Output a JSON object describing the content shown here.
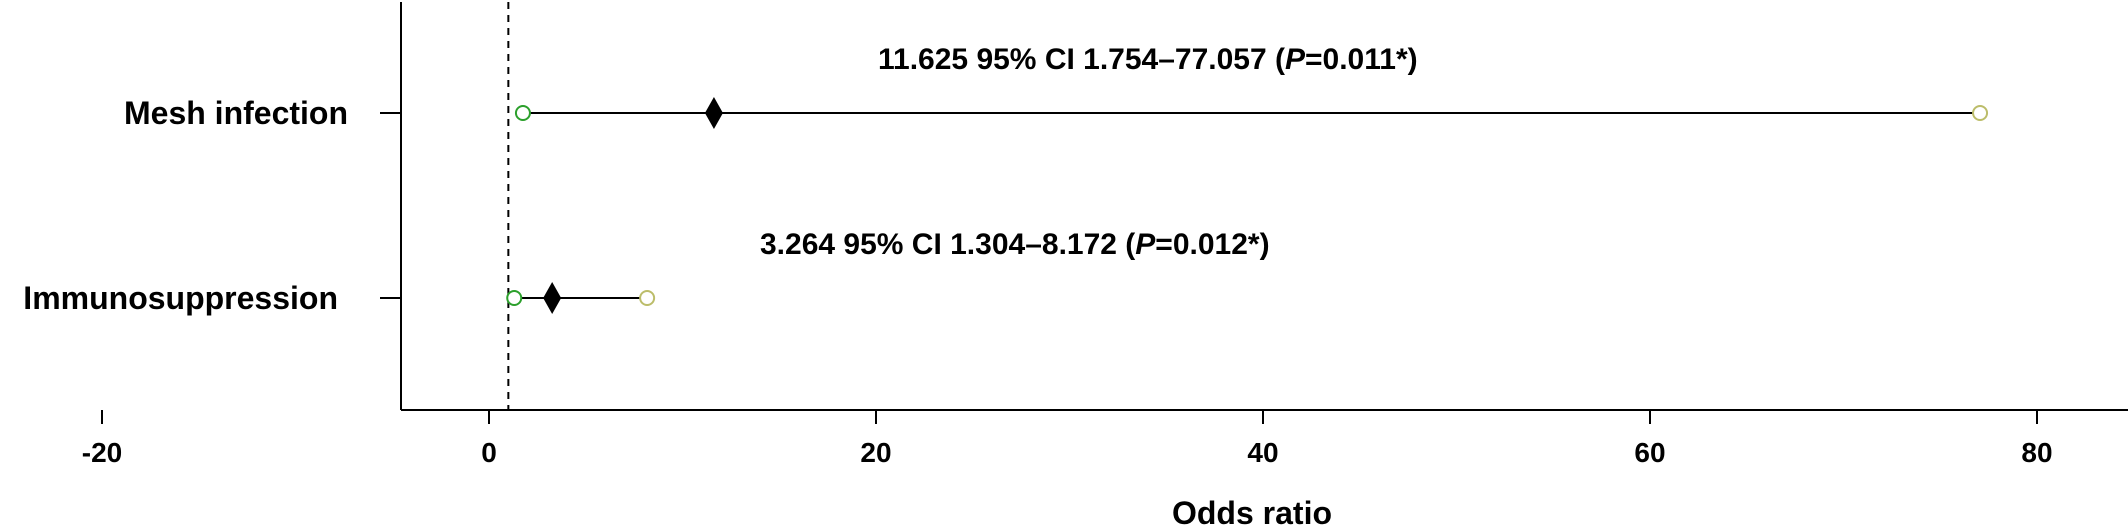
{
  "chart_data": {
    "type": "forest",
    "xlabel": "Odds ratio",
    "xlim": [
      -26,
      87
    ],
    "xticks": [
      -20,
      0,
      20,
      40,
      60,
      80
    ],
    "reference_line": 1,
    "colors": {
      "estimate": "#000000",
      "lower": "#2ca02c",
      "upper": "#bcbd6a",
      "line": "#000000"
    },
    "rows": [
      {
        "label": "Mesh infection",
        "or": 11.625,
        "lower": 1.754,
        "upper": 77.057,
        "annotation": {
          "main": "11.625 95% CI 1.754–77.057 (",
          "p_italic": "P",
          "p_rest": "=0.011*)"
        }
      },
      {
        "label": "Immunosuppression",
        "or": 3.264,
        "lower": 1.304,
        "upper": 8.172,
        "annotation": {
          "main": "3.264 95% CI 1.304–8.172 (",
          "p_italic": "P",
          "p_rest": "=0.012*)"
        }
      }
    ]
  }
}
